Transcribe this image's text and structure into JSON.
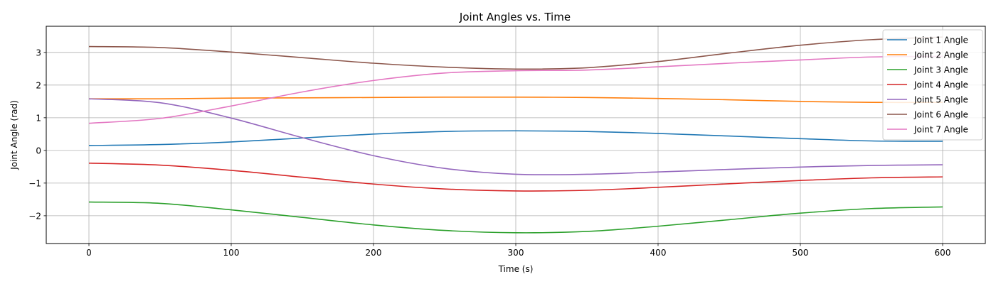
{
  "chart_data": {
    "type": "line",
    "title": "Joint Angles vs. Time",
    "xlabel": "Time (s)",
    "ylabel": "Joint Angle (rad)",
    "xlim": [
      -30,
      630
    ],
    "ylim": [
      -2.85,
      3.8
    ],
    "xticks": [
      0,
      100,
      200,
      300,
      400,
      500,
      600
    ],
    "yticks": [
      -2,
      -1,
      0,
      1,
      2,
      3
    ],
    "grid": true,
    "legend_position": "upper right",
    "x": [
      0,
      50,
      100,
      150,
      200,
      250,
      300,
      350,
      400,
      450,
      500,
      550,
      600
    ],
    "series": [
      {
        "name": "Joint 1 Angle",
        "color": "#1f77b4",
        "values": [
          0.15,
          0.18,
          0.26,
          0.38,
          0.5,
          0.58,
          0.6,
          0.58,
          0.52,
          0.44,
          0.36,
          0.29,
          0.28
        ]
      },
      {
        "name": "Joint 2 Angle",
        "color": "#ff7f0e",
        "values": [
          1.58,
          1.58,
          1.6,
          1.61,
          1.62,
          1.63,
          1.63,
          1.62,
          1.59,
          1.55,
          1.5,
          1.47,
          1.47
        ]
      },
      {
        "name": "Joint 3 Angle",
        "color": "#2ca02c",
        "values": [
          -1.58,
          -1.62,
          -1.82,
          -2.05,
          -2.28,
          -2.45,
          -2.52,
          -2.48,
          -2.32,
          -2.12,
          -1.92,
          -1.78,
          -1.73
        ]
      },
      {
        "name": "Joint 4 Angle",
        "color": "#d62728",
        "values": [
          -0.39,
          -0.45,
          -0.61,
          -0.82,
          -1.03,
          -1.18,
          -1.24,
          -1.22,
          -1.13,
          -1.02,
          -0.92,
          -0.84,
          -0.81
        ]
      },
      {
        "name": "Joint 5 Angle",
        "color": "#9467bd",
        "values": [
          1.58,
          1.46,
          0.99,
          0.39,
          -0.16,
          -0.55,
          -0.73,
          -0.73,
          -0.66,
          -0.58,
          -0.51,
          -0.46,
          -0.44
        ]
      },
      {
        "name": "Joint 6 Angle",
        "color": "#8c564b",
        "values": [
          3.18,
          3.15,
          3.01,
          2.84,
          2.67,
          2.55,
          2.49,
          2.53,
          2.72,
          2.98,
          3.22,
          3.39,
          3.47
        ]
      },
      {
        "name": "Joint 7 Angle",
        "color": "#e377c2",
        "values": [
          0.83,
          0.98,
          1.36,
          1.79,
          2.14,
          2.37,
          2.44,
          2.46,
          2.56,
          2.67,
          2.77,
          2.86,
          2.88
        ]
      }
    ]
  }
}
